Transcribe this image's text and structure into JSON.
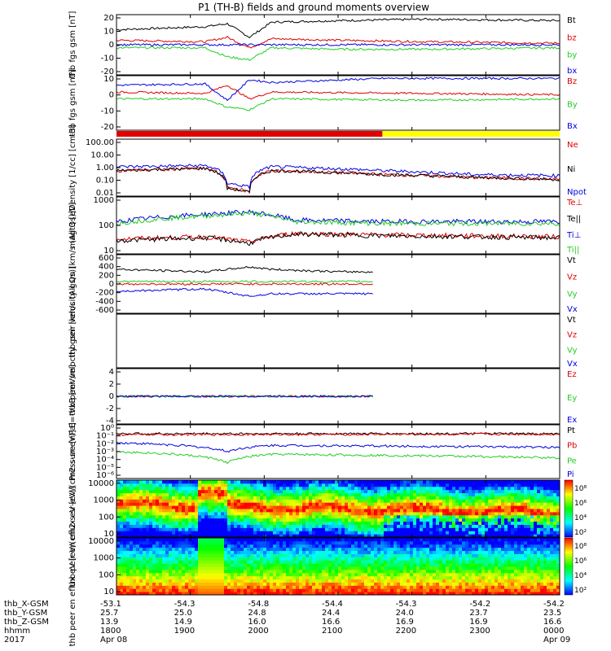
{
  "title": "P1 (TH-B) fields and ground moments overview",
  "colors": {
    "black": "#000000",
    "red": "#e00000",
    "green": "#22cc22",
    "blue": "#0000e0",
    "yellow": "#ffff00"
  },
  "status_bar": {
    "split_fraction": 0.6,
    "colors": [
      "#e00000",
      "#ffff00"
    ]
  },
  "x_axis": {
    "range": [
      "1800",
      "0000"
    ],
    "row_labels": [
      "thb_X-GSM",
      "thb_Y-GSM",
      "thb_Z-GSM",
      "hhmm",
      "2017"
    ],
    "ticks": [
      {
        "x": "-53.1",
        "y": "25.7",
        "z": "13.9",
        "t": "1800",
        "d": "Apr 08"
      },
      {
        "x": "-54.3",
        "y": "25.0",
        "z": "14.9",
        "t": "1900",
        "d": ""
      },
      {
        "x": "-54.8",
        "y": "24.8",
        "z": "16.0",
        "t": "2000",
        "d": ""
      },
      {
        "x": "-54.4",
        "y": "24.4",
        "z": "16.6",
        "t": "2100",
        "d": ""
      },
      {
        "x": "-54.3",
        "y": "24.0",
        "z": "16.9",
        "t": "2200",
        "d": ""
      },
      {
        "x": "-54.2",
        "y": "23.7",
        "z": "16.9",
        "t": "2300",
        "d": ""
      },
      {
        "x": "-54.2",
        "y": "23.5",
        "z": "16.6",
        "t": "0000",
        "d": "Apr 09"
      }
    ]
  },
  "chart_data": [
    {
      "type": "line",
      "ylabel": "thb fgs gsm [nT]",
      "ylim": [
        -20,
        20
      ],
      "scale": "linear",
      "tick_labels": [
        "20",
        "10",
        "0",
        "-10",
        "-20"
      ],
      "series": [
        {
          "name": "Bt",
          "color": "#000000",
          "key": [
            [
              0,
              10
            ],
            [
              0.2,
              12
            ],
            [
              0.25,
              14
            ],
            [
              0.3,
              5
            ],
            [
              0.35,
              15
            ],
            [
              0.5,
              16
            ],
            [
              0.7,
              17
            ],
            [
              1,
              16
            ]
          ]
        },
        {
          "name": "bz",
          "color": "#e00000",
          "key": [
            [
              0,
              3
            ],
            [
              0.2,
              2
            ],
            [
              0.25,
              5
            ],
            [
              0.3,
              -2
            ],
            [
              0.35,
              4
            ],
            [
              0.5,
              3
            ],
            [
              0.7,
              2
            ],
            [
              1,
              1
            ]
          ]
        },
        {
          "name": "by",
          "color": "#22cc22",
          "key": [
            [
              0,
              -2
            ],
            [
              0.2,
              -2
            ],
            [
              0.25,
              -8
            ],
            [
              0.3,
              -10
            ],
            [
              0.35,
              -2
            ],
            [
              0.5,
              -3
            ],
            [
              0.7,
              -3
            ],
            [
              1,
              -2
            ]
          ]
        },
        {
          "name": "bx",
          "color": "#0000e0",
          "key": [
            [
              0,
              0
            ],
            [
              1,
              0
            ]
          ]
        }
      ]
    },
    {
      "type": "line",
      "ylabel": "thb fgs gsm [nT]",
      "ylim": [
        -25,
        15
      ],
      "scale": "linear",
      "tick_labels": [
        "10",
        "0",
        "-10",
        "-20"
      ],
      "series": [
        {
          "name": "Bz",
          "color": "#e00000",
          "key": [
            [
              0,
              3
            ],
            [
              0.2,
              2
            ],
            [
              0.25,
              8
            ],
            [
              0.3,
              -2
            ],
            [
              0.35,
              3
            ],
            [
              0.7,
              2
            ],
            [
              1,
              1
            ]
          ]
        },
        {
          "name": "By",
          "color": "#22cc22",
          "key": [
            [
              0,
              -2
            ],
            [
              0.2,
              -2
            ],
            [
              0.25,
              -8
            ],
            [
              0.3,
              -10
            ],
            [
              0.35,
              -2
            ],
            [
              0.7,
              -3
            ],
            [
              1,
              -2
            ]
          ]
        },
        {
          "name": "Bx",
          "color": "#0000e0",
          "key": [
            [
              0,
              8
            ],
            [
              0.2,
              9
            ],
            [
              0.25,
              -3
            ],
            [
              0.3,
              12
            ],
            [
              0.35,
              10
            ],
            [
              0.6,
              13
            ],
            [
              1,
              13
            ]
          ]
        }
      ]
    },
    {
      "type": "line",
      "ylabel": "Density [1/cc] [cm-3]",
      "ylim": [
        0.01,
        300
      ],
      "scale": "log",
      "tick_labels": [
        "100.00",
        "10.00",
        "1.00",
        "0.10",
        "0.01"
      ],
      "series": [
        {
          "name": "Ne",
          "color": "#e00000",
          "key": [
            [
              0,
              1
            ],
            [
              0.2,
              1.5
            ],
            [
              0.25,
              0.05
            ],
            [
              0.3,
              0.02
            ],
            [
              0.35,
              1
            ],
            [
              0.6,
              0.5
            ],
            [
              0.8,
              0.3
            ],
            [
              1,
              0.2
            ]
          ]
        },
        {
          "name": "Ni",
          "color": "#000000",
          "key": [
            [
              0,
              1
            ],
            [
              0.2,
              1.5
            ],
            [
              0.25,
              0.04
            ],
            [
              0.3,
              0.02
            ],
            [
              0.35,
              1
            ],
            [
              0.6,
              0.5
            ],
            [
              0.8,
              0.3
            ],
            [
              1,
              0.2
            ]
          ]
        },
        {
          "name": "Npot",
          "color": "#0000e0",
          "key": [
            [
              0,
              2
            ],
            [
              0.2,
              2.5
            ],
            [
              0.25,
              0.1
            ],
            [
              0.3,
              0.05
            ],
            [
              0.35,
              2
            ],
            [
              0.6,
              1
            ],
            [
              0.8,
              0.5
            ],
            [
              1,
              0.4
            ]
          ]
        }
      ]
    },
    {
      "type": "line",
      "ylabel": "magt3 [eV]",
      "ylim": [
        5,
        5000
      ],
      "scale": "log",
      "tick_labels": [
        "1000",
        "100",
        "10"
      ],
      "series": [
        {
          "name": "Te⊥",
          "color": "#e00000",
          "key": [
            [
              0,
              30
            ],
            [
              0.2,
              40
            ],
            [
              0.3,
              20
            ],
            [
              0.4,
              60
            ],
            [
              0.6,
              50
            ],
            [
              1,
              40
            ]
          ]
        },
        {
          "name": "Te||",
          "color": "#000000",
          "key": [
            [
              0,
              25
            ],
            [
              0.2,
              35
            ],
            [
              0.3,
              18
            ],
            [
              0.4,
              55
            ],
            [
              0.6,
              45
            ],
            [
              1,
              35
            ]
          ]
        },
        {
          "name": "Ti⊥",
          "color": "#0000e0",
          "key": [
            [
              0,
              250
            ],
            [
              0.2,
              600
            ],
            [
              0.3,
              800
            ],
            [
              0.4,
              300
            ],
            [
              0.6,
              250
            ],
            [
              1,
              250
            ]
          ]
        },
        {
          "name": "Ti||",
          "color": "#22cc22",
          "key": [
            [
              0,
              200
            ],
            [
              0.2,
              500
            ],
            [
              0.3,
              700
            ],
            [
              0.4,
              250
            ],
            [
              0.6,
              200
            ],
            [
              1,
              200
            ]
          ]
        }
      ]
    },
    {
      "type": "line",
      "ylabel": "thb peir velocity gsm [km/s (All Qs)]",
      "ylim": [
        -600,
        600
      ],
      "scale": "linear",
      "tick_labels": [
        "600",
        "400",
        "200",
        "0",
        "-200",
        "-400",
        "-600"
      ],
      "series": [
        {
          "name": "Vt",
          "color": "#000000",
          "key": [
            [
              0,
              300
            ],
            [
              0.2,
              250
            ],
            [
              0.3,
              350
            ],
            [
              0.35,
              300
            ],
            [
              0.5,
              250
            ],
            [
              0.58,
              250
            ]
          ]
        },
        {
          "name": "Vz",
          "color": "#e00000",
          "key": [
            [
              0,
              0
            ],
            [
              0.58,
              0
            ]
          ]
        },
        {
          "name": "Vy",
          "color": "#22cc22",
          "key": [
            [
              0,
              50
            ],
            [
              0.58,
              50
            ]
          ]
        },
        {
          "name": "Vx",
          "color": "#0000e0",
          "key": [
            [
              0,
              -150
            ],
            [
              0.2,
              -100
            ],
            [
              0.3,
              -250
            ],
            [
              0.35,
              -200
            ],
            [
              0.5,
              -200
            ],
            [
              0.58,
              -200
            ]
          ]
        }
      ]
    },
    {
      "type": "line",
      "ylabel": "thb peer velocity gsm [km/s (All Qs)]",
      "ylim": [
        0,
        1
      ],
      "scale": "linear",
      "tick_labels": [],
      "series": [
        {
          "name": "Vt",
          "color": "#000000",
          "key": []
        },
        {
          "name": "Vz",
          "color": "#e00000",
          "key": []
        },
        {
          "name": "Vy",
          "color": "#22cc22",
          "key": []
        },
        {
          "name": "Vx",
          "color": "#0000e0",
          "key": []
        }
      ]
    },
    {
      "type": "line",
      "ylabel": "E=-VxB [mV/m]",
      "ylim": [
        -4,
        4
      ],
      "scale": "linear",
      "tick_labels": [
        "4",
        "2",
        "0",
        "-2",
        "-4"
      ],
      "series": [
        {
          "name": "Ez",
          "color": "#e00000",
          "key": [
            [
              0,
              0
            ],
            [
              0.58,
              0
            ]
          ]
        },
        {
          "name": "Ey",
          "color": "#22cc22",
          "key": [
            [
              0,
              0
            ],
            [
              0.58,
              0
            ]
          ]
        },
        {
          "name": "Ex",
          "color": "#0000e0",
          "key": [
            [
              0,
              0
            ],
            [
              0.58,
              0
            ]
          ]
        }
      ]
    },
    {
      "type": "line",
      "ylabel": "Pressure [nPa]",
      "ylim": [
        1e-06,
        1
      ],
      "scale": "log",
      "tick_labels": [
        "10⁰",
        "10⁻¹",
        "10⁻²",
        "10⁻³",
        "10⁻⁴",
        "10⁻⁵",
        "10⁻⁶"
      ],
      "series": [
        {
          "name": "Pt",
          "color": "#000000",
          "key": [
            [
              0,
              0.1
            ],
            [
              1,
              0.1
            ]
          ]
        },
        {
          "name": "Pb",
          "color": "#e00000",
          "key": [
            [
              0,
              0.08
            ],
            [
              1,
              0.09
            ]
          ]
        },
        {
          "name": "Pe",
          "color": "#22cc22",
          "key": [
            [
              0,
              0.001
            ],
            [
              0.25,
              5e-05
            ],
            [
              0.35,
              0.0005
            ],
            [
              1,
              0.0002
            ]
          ]
        },
        {
          "name": "Pi",
          "color": "#0000e0",
          "key": [
            [
              0,
              0.01
            ],
            [
              0.25,
              0.001
            ],
            [
              0.35,
              0.005
            ],
            [
              1,
              0.003
            ]
          ]
        }
      ]
    },
    {
      "type": "heatmap",
      "ylabel": "thb peir en eflux eV [eV/(cm2-s-sr-eV)]",
      "ylim": [
        5,
        25000
      ],
      "scale": "log",
      "tick_labels": [
        "10000",
        "1000",
        "100",
        "10"
      ],
      "colorbar": {
        "label": "[eV/(cm2-s-sr-eV)] (All Qs)",
        "ticks": [
          "10⁸",
          "10⁶",
          "10⁴",
          "10²"
        ]
      }
    },
    {
      "type": "heatmap",
      "ylabel": "thb peer en eflux eV [eV/(cm2-s-sr-eV)]",
      "ylim": [
        5,
        25000
      ],
      "scale": "log",
      "tick_labels": [
        "10000",
        "1000",
        "100",
        "10"
      ],
      "colorbar": {
        "label": "[eV/(cm2-s-sr-eV)] (All Qs)",
        "ticks": [
          "10⁸",
          "10⁶",
          "10⁴",
          "10²"
        ]
      }
    }
  ]
}
